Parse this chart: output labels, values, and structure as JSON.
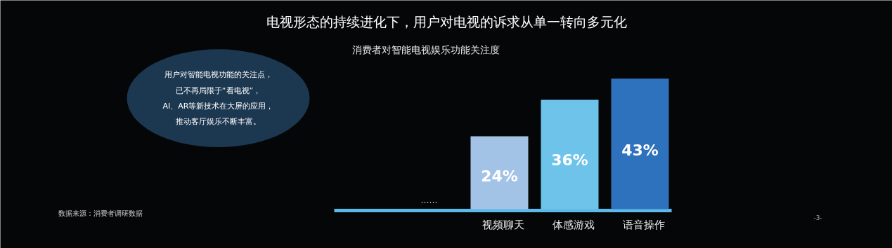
{
  "chart_data": {
    "type": "bar",
    "title": "电视形态的持续进化下，用户对电视的诉求从单一转向多元化",
    "subtitle": "消费者对智能电视娱乐功能关注度",
    "categories": [
      null,
      "视频聊天",
      "体感游戏",
      "语音操作"
    ],
    "values": [
      null,
      24,
      36,
      43
    ],
    "colors": [
      "#8796b0",
      "#a3c3e6",
      "#6ec3ea",
      "#2e71bc"
    ],
    "value_labels": [
      "……",
      "24%",
      "36%",
      "43%"
    ],
    "annotations": [
      "用户对智能电视功能的关注点，",
      "已不再局限于“看电视”，",
      "AI、AR等新技术在大屏的应用，",
      "推动客厅娱乐不断丰富。",
      "数据来源：消费者调研数据",
      "-3-"
    ]
  }
}
